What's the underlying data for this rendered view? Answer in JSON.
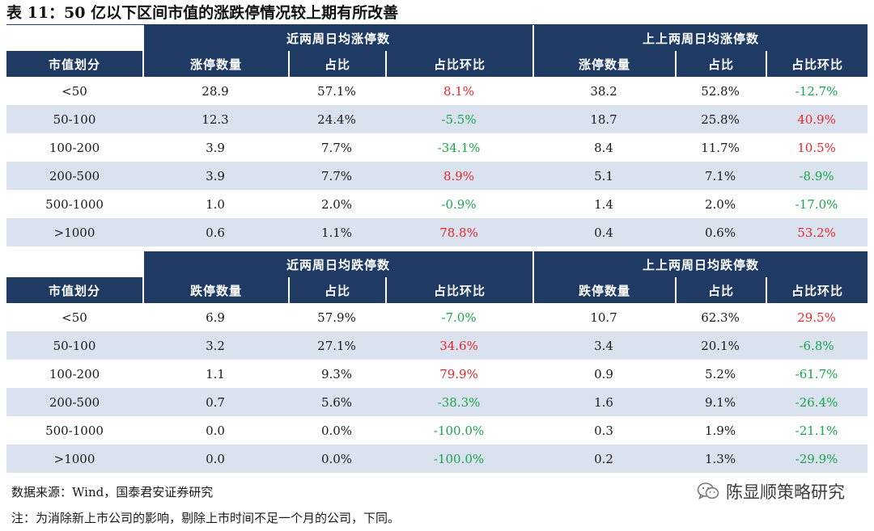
{
  "title": "表 11：50 亿以下区间市值的涨跌停情况较上期有所改善",
  "upper": {
    "group_recent": "近两周日均涨停数",
    "group_prior": "上上两周日均涨停数",
    "headers": [
      "市值划分",
      "涨停数量",
      "占比",
      "占比环比",
      "涨停数量",
      "占比",
      "占比环比"
    ],
    "rows": [
      {
        "c0": "<50",
        "c1": "28.9",
        "c2": "57.1%",
        "c3": "8.1%",
        "c4": "38.2",
        "c5": "52.8%",
        "c6": "-12.7%"
      },
      {
        "c0": "50-100",
        "c1": "12.3",
        "c2": "24.4%",
        "c3": "-5.5%",
        "c4": "18.7",
        "c5": "25.8%",
        "c6": "40.9%"
      },
      {
        "c0": "100-200",
        "c1": "3.9",
        "c2": "7.7%",
        "c3": "-34.1%",
        "c4": "8.4",
        "c5": "11.7%",
        "c6": "10.5%"
      },
      {
        "c0": "200-500",
        "c1": "3.9",
        "c2": "7.7%",
        "c3": "8.9%",
        "c4": "5.1",
        "c5": "7.1%",
        "c6": "-8.9%"
      },
      {
        "c0": "500-1000",
        "c1": "1.0",
        "c2": "2.0%",
        "c3": "-0.9%",
        "c4": "1.4",
        "c5": "2.0%",
        "c6": "-17.0%"
      },
      {
        "c0": ">1000",
        "c1": "0.6",
        "c2": "1.1%",
        "c3": "78.8%",
        "c4": "0.4",
        "c5": "0.6%",
        "c6": "53.2%"
      }
    ]
  },
  "lower": {
    "group_recent": "近两周日均跌停数",
    "group_prior": "上上两周日均跌停数",
    "headers": [
      "市值划分",
      "跌停数量",
      "占比",
      "占比环比",
      "跌停数量",
      "占比",
      "占比环比"
    ],
    "rows": [
      {
        "c0": "<50",
        "c1": "6.9",
        "c2": "57.9%",
        "c3": "-7.0%",
        "c4": "10.7",
        "c5": "62.3%",
        "c6": "29.5%"
      },
      {
        "c0": "50-100",
        "c1": "3.2",
        "c2": "27.1%",
        "c3": "34.6%",
        "c4": "3.4",
        "c5": "20.1%",
        "c6": "-6.8%"
      },
      {
        "c0": "100-200",
        "c1": "1.1",
        "c2": "9.3%",
        "c3": "79.9%",
        "c4": "0.9",
        "c5": "5.2%",
        "c6": "-61.7%"
      },
      {
        "c0": "200-500",
        "c1": "0.7",
        "c2": "5.6%",
        "c3": "-38.3%",
        "c4": "1.6",
        "c5": "9.1%",
        "c6": "-26.4%"
      },
      {
        "c0": "500-1000",
        "c1": "0.0",
        "c2": "0.0%",
        "c3": "-100.0%",
        "c4": "0.3",
        "c5": "1.9%",
        "c6": "-21.1%"
      },
      {
        "c0": ">1000",
        "c1": "0.0",
        "c2": "0.0%",
        "c3": "-100.0%",
        "c4": "0.2",
        "c5": "1.3%",
        "c6": "-29.9%"
      }
    ]
  },
  "colors": {
    "header_bg": "#1f3b63",
    "row_shade": "#d9e2ee",
    "negative": "#19a64b",
    "positive": "#e6262b"
  },
  "source": "数据来源：Wind，国泰君安证券研究",
  "note": "注：为消除新上市公司的影响，剔除上市时间不足一个月的公司，下同。",
  "brand": {
    "icon": "wechat-icon",
    "text": "陈显顺策略研究"
  }
}
